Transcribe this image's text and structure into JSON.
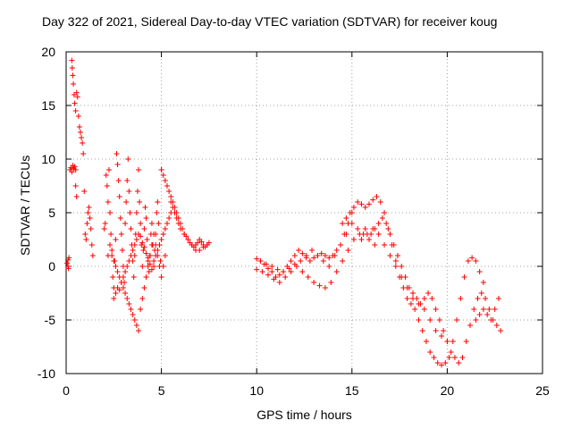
{
  "chart_data": {
    "type": "scatter",
    "title": "Day 322 of 2021, Sidereal Day-to-day VTEC variation (SDTVAR) for receiver koug",
    "xlabel": "GPS time / hours",
    "ylabel": "SDTVAR / TECUs",
    "xlim": [
      0,
      25
    ],
    "ylim": [
      -10,
      20
    ],
    "xticks": [
      0,
      5,
      10,
      15,
      20,
      25
    ],
    "yticks": [
      -10,
      -5,
      0,
      5,
      10,
      15,
      20
    ],
    "xtick_labels": [
      "0",
      "5",
      "10",
      "15",
      "20",
      "25"
    ],
    "ytick_labels": [
      "-10",
      "-5",
      "0",
      "5",
      "10",
      "15",
      "20"
    ],
    "grid": true,
    "marker": "+",
    "color": "#ff0000",
    "series": [
      {
        "name": "SDTVAR",
        "x": [
          0.05,
          0.1,
          0.15,
          0.2,
          0.25,
          0.3,
          0.35,
          0.4,
          0.45,
          0.5,
          0.3,
          0.32,
          0.35,
          0.38,
          0.42,
          0.45,
          0.5,
          0.55,
          0.6,
          0.65,
          0.7,
          0.75,
          0.8,
          0.85,
          0.9,
          0.95,
          0.5,
          0.55,
          1.0,
          1.05,
          1.1,
          1.15,
          1.2,
          1.25,
          1.3,
          1.35,
          1.4,
          0.1,
          0.12,
          2.0,
          2.05,
          2.1,
          2.15,
          2.2,
          2.25,
          2.3,
          2.35,
          2.4,
          2.45,
          2.5,
          2.55,
          2.6,
          2.65,
          2.7,
          2.75,
          2.8,
          2.85,
          2.9,
          2.95,
          3.0,
          3.05,
          3.1,
          3.15,
          3.2,
          3.25,
          3.3,
          3.35,
          3.4,
          3.45,
          3.5,
          3.55,
          3.6,
          3.65,
          3.7,
          3.75,
          3.8,
          3.85,
          3.9,
          3.95,
          4.0,
          4.05,
          4.1,
          4.15,
          4.2,
          4.25,
          4.3,
          4.35,
          4.4,
          4.45,
          4.5,
          4.55,
          4.6,
          4.65,
          4.7,
          4.75,
          4.8,
          4.85,
          4.9,
          4.95,
          5.0,
          2.5,
          2.6,
          2.7,
          2.8,
          2.9,
          3.0,
          3.1,
          3.2,
          3.3,
          3.4,
          3.5,
          3.6,
          3.7,
          3.8,
          3.9,
          4.0,
          4.1,
          4.2,
          4.3,
          4.4,
          4.5,
          4.6,
          4.7,
          4.8,
          4.9,
          5.0,
          5.1,
          5.2,
          5.3,
          5.4,
          5.5,
          2.2,
          2.3,
          2.4,
          2.5,
          2.6,
          2.7,
          2.8,
          2.9,
          3.0,
          3.1,
          3.2,
          3.3,
          3.4,
          3.5,
          3.6,
          3.7,
          3.8,
          3.9,
          4.0,
          4.1,
          4.2,
          4.3,
          4.4,
          4.5,
          4.6,
          4.7,
          4.8,
          4.9,
          5.0,
          5.1,
          5.2,
          5.0,
          5.1,
          5.2,
          5.3,
          5.4,
          5.5,
          5.6,
          5.7,
          5.8,
          5.9,
          6.0,
          6.1,
          6.2,
          6.3,
          6.4,
          6.5,
          6.6,
          6.7,
          6.8,
          6.9,
          7.0,
          7.1,
          7.2,
          7.3,
          7.4,
          7.5,
          5.5,
          5.6,
          5.7,
          5.8,
          5.9,
          6.0,
          6.2,
          6.4,
          6.6,
          6.8,
          7.0,
          7.2,
          7.4,
          10.0,
          10.2,
          10.4,
          10.6,
          10.8,
          11.0,
          11.2,
          11.4,
          11.6,
          11.8,
          12.0,
          12.2,
          12.4,
          12.6,
          12.8,
          13.0,
          13.2,
          13.4,
          13.6,
          13.8,
          14.0,
          14.2,
          14.4,
          14.6,
          14.8,
          15.0,
          10.0,
          10.3,
          10.6,
          10.9,
          11.2,
          11.5,
          11.8,
          12.1,
          12.4,
          12.7,
          13.0,
          13.3,
          13.6,
          13.9,
          14.2,
          14.5,
          14.8,
          15.1,
          15.4,
          15.7,
          10.2,
          10.5,
          10.8,
          11.1,
          11.4,
          11.7,
          12.0,
          12.3,
          12.6,
          12.9,
          13.2,
          13.5,
          13.8,
          14.1,
          14.4,
          14.7,
          15.0,
          15.3,
          15.6,
          15.9,
          16.2,
          14.5,
          14.7,
          14.9,
          15.1,
          15.3,
          15.5,
          15.7,
          15.9,
          16.1,
          16.3,
          16.5,
          16.7,
          16.9,
          17.1,
          17.3,
          17.5,
          17.7,
          17.9,
          18.1,
          18.3,
          18.5,
          18.7,
          18.9,
          19.1,
          19.3,
          19.5,
          19.7,
          19.9,
          20.1,
          20.3,
          20.5,
          20.7,
          20.9,
          21.1,
          21.3,
          21.5,
          21.7,
          21.9,
          16.0,
          16.2,
          16.4,
          16.6,
          16.8,
          17.0,
          17.2,
          17.4,
          17.6,
          17.8,
          18.0,
          18.2,
          18.4,
          18.6,
          18.8,
          19.0,
          19.2,
          19.4,
          19.6,
          19.8,
          20.0,
          20.2,
          20.4,
          20.6,
          20.8,
          21.0,
          21.2,
          21.4,
          21.6,
          21.8,
          22.0,
          22.2,
          22.4,
          22.6,
          22.8,
          15.5,
          15.8,
          16.1,
          16.4,
          16.7,
          17.0,
          17.3,
          17.6,
          17.9,
          18.2,
          18.5,
          18.8,
          19.1,
          19.4,
          19.7,
          20.0,
          21.5,
          21.7,
          21.9,
          22.1,
          22.3,
          22.5,
          22.7
        ],
        "y": [
          0.3,
          0.6,
          0.8,
          9.0,
          9.2,
          8.8,
          9.4,
          9.1,
          9.3,
          9.0,
          19.2,
          18.5,
          17.8,
          17.0,
          16.0,
          15.2,
          14.5,
          16.2,
          15.8,
          14.0,
          13.0,
          12.5,
          12.0,
          11.5,
          10.5,
          7.0,
          7.5,
          6.5,
          3.0,
          2.5,
          4.0,
          5.0,
          5.5,
          4.5,
          3.5,
          2.0,
          1.0,
          0.0,
          -0.2,
          3.5,
          4.0,
          8.5,
          7.5,
          6.0,
          9.0,
          5.0,
          3.0,
          1.0,
          -1.0,
          -2.0,
          0.5,
          2.5,
          10.5,
          9.5,
          8.0,
          6.5,
          4.5,
          3.0,
          1.5,
          0.0,
          -1.5,
          4.0,
          6.0,
          8.0,
          10.0,
          7.0,
          5.0,
          3.5,
          2.0,
          0.5,
          -1.0,
          1.0,
          3.0,
          5.0,
          7.0,
          9.0,
          6.0,
          4.0,
          2.0,
          0.0,
          1.5,
          3.5,
          5.5,
          4.5,
          2.5,
          0.5,
          -0.5,
          1.0,
          3.0,
          4.0,
          2.0,
          0.0,
          1.5,
          3.0,
          5.0,
          6.0,
          4.0,
          2.0,
          0.5,
          9.0,
          -3.0,
          -2.5,
          -2.0,
          -2.2,
          -1.5,
          -1.0,
          -0.5,
          0.0,
          0.5,
          1.0,
          1.5,
          2.0,
          2.5,
          3.0,
          2.8,
          2.2,
          1.8,
          1.2,
          0.8,
          0.2,
          -0.3,
          0.5,
          1.0,
          1.5,
          2.0,
          2.5,
          3.0,
          3.5,
          4.0,
          4.5,
          5.0,
          1.0,
          2.0,
          1.5,
          0.5,
          0.0,
          -0.5,
          -1.0,
          -1.5,
          -2.0,
          -2.5,
          -3.0,
          -3.5,
          -4.0,
          -4.5,
          -5.0,
          -5.5,
          -6.0,
          -4.0,
          -3.0,
          -2.0,
          -1.0,
          0.0,
          1.0,
          2.0,
          3.0,
          2.0,
          1.0,
          0.0,
          -1.0,
          0.0,
          1.0,
          9.0,
          8.5,
          8.0,
          7.5,
          7.0,
          6.5,
          6.0,
          5.5,
          5.0,
          4.5,
          4.0,
          3.5,
          3.0,
          2.8,
          2.5,
          2.2,
          2.0,
          1.8,
          2.0,
          2.2,
          2.5,
          2.3,
          2.0,
          1.8,
          2.0,
          2.2,
          6.0,
          5.5,
          5.0,
          4.5,
          4.0,
          3.5,
          3.0,
          2.5,
          2.0,
          1.5,
          1.5,
          1.8,
          2.0,
          0.7,
          0.5,
          0.2,
          -0.2,
          -0.5,
          -1.0,
          -0.8,
          -0.5,
          0.0,
          0.5,
          1.0,
          1.5,
          1.2,
          0.8,
          0.5,
          0.8,
          1.0,
          1.2,
          1.0,
          0.8,
          1.0,
          1.5,
          2.0,
          3.0,
          4.0,
          5.0,
          -0.3,
          -0.5,
          -0.8,
          -1.2,
          -1.5,
          -1.0,
          -0.5,
          0.0,
          -0.5,
          -1.0,
          -1.5,
          -1.8,
          -2.0,
          -1.5,
          -0.5,
          0.5,
          1.5,
          2.5,
          3.0,
          3.5,
          0.5,
          0.2,
          0.0,
          -0.3,
          -0.5,
          -0.2,
          0.2,
          0.5,
          1.0,
          1.5,
          1.0,
          0.5,
          0.0,
          1.0,
          2.0,
          3.0,
          4.0,
          3.5,
          3.0,
          2.5,
          2.0,
          4.0,
          4.5,
          5.0,
          5.5,
          6.0,
          5.8,
          5.5,
          5.8,
          6.2,
          6.5,
          6.0,
          5.0,
          3.5,
          2.0,
          0.5,
          -1.0,
          -2.0,
          -3.0,
          -3.5,
          -4.0,
          -5.0,
          -6.0,
          -7.0,
          -8.0,
          -8.5,
          -9.0,
          -9.2,
          -9.0,
          -8.5,
          -7.0,
          -5.0,
          -3.0,
          -1.0,
          0.5,
          0.8,
          0.5,
          -0.5,
          -1.5,
          3.0,
          3.5,
          4.0,
          4.5,
          4.0,
          3.0,
          2.0,
          1.0,
          0.0,
          -1.0,
          -2.0,
          -2.5,
          -3.0,
          -3.5,
          -3.0,
          -2.5,
          -3.0,
          -4.0,
          -5.0,
          -6.0,
          -7.0,
          -8.0,
          -8.5,
          -9.0,
          -8.5,
          -7.0,
          -5.5,
          -4.0,
          -3.0,
          -2.5,
          -3.0,
          -4.0,
          -5.0,
          -5.5,
          -6.0,
          2.5,
          3.0,
          3.5,
          3.0,
          2.0,
          1.0,
          0.0,
          -1.0,
          -2.0,
          -3.0,
          -3.5,
          -4.0,
          -5.0,
          -6.0,
          -6.5,
          -7.0,
          -5.0,
          -4.5,
          -4.0,
          -4.5,
          -5.0,
          -4.0,
          -3.0
        ]
      }
    ]
  }
}
